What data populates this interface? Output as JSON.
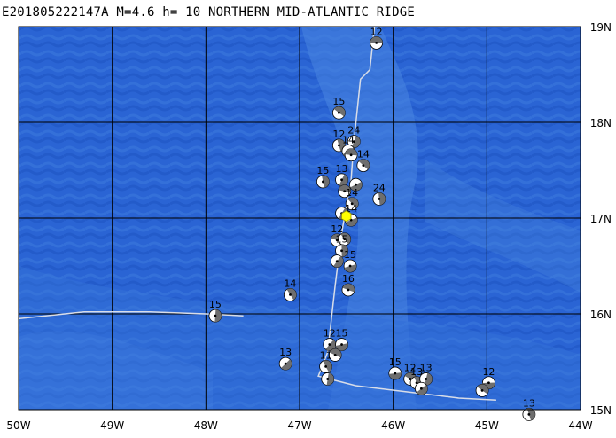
{
  "header": {
    "title": "E201805222147A  M=4.6  h=  10  NORTHERN MID-ATLANTIC RIDGE"
  },
  "colors": {
    "ocean_deep": "#1f56c8",
    "ocean_mid": "#2f6bd8",
    "ocean_light": "#4a86e0",
    "grid": "#000000",
    "plate_boundary": "#d8dde8",
    "event_marker": "#ffff00",
    "beachball_fill": "#6e6e6e"
  },
  "map": {
    "lon_range": [
      -50,
      -44
    ],
    "lat_range": [
      15,
      19
    ],
    "lon_labels": [
      "50W",
      "49W",
      "48W",
      "47W",
      "46W",
      "45W",
      "44W"
    ],
    "lat_labels": [
      "19N",
      "18N",
      "17N",
      "16N",
      "15N"
    ],
    "plate_boundaries": [
      [
        [
          -46.2,
          19.0
        ],
        [
          -46.25,
          18.55
        ],
        [
          -46.35,
          18.45
        ],
        [
          -46.42,
          17.8
        ],
        [
          -46.45,
          17.4
        ],
        [
          -46.55,
          16.85
        ],
        [
          -46.62,
          16.3
        ],
        [
          -46.7,
          15.6
        ],
        [
          -46.8,
          15.35
        ],
        [
          -46.4,
          15.25
        ],
        [
          -45.8,
          15.18
        ],
        [
          -45.3,
          15.12
        ],
        [
          -44.9,
          15.1
        ]
      ],
      [
        [
          -50.0,
          15.95
        ],
        [
          -49.3,
          16.02
        ],
        [
          -48.6,
          16.02
        ],
        [
          -48.0,
          16.0
        ],
        [
          -47.6,
          15.98
        ]
      ]
    ],
    "main_event": {
      "lon": -46.5,
      "lat": 17.02
    },
    "events": [
      {
        "lon": -46.18,
        "lat": 18.83,
        "label": "12"
      },
      {
        "lon": -46.58,
        "lat": 18.1,
        "label": "15"
      },
      {
        "lon": -46.58,
        "lat": 17.76,
        "label": "12"
      },
      {
        "lon": -46.42,
        "lat": 17.8,
        "label": "24"
      },
      {
        "lon": -46.48,
        "lat": 17.7,
        "label": "14"
      },
      {
        "lon": -46.45,
        "lat": 17.66,
        "label": ""
      },
      {
        "lon": -46.32,
        "lat": 17.55,
        "label": "14"
      },
      {
        "lon": -46.75,
        "lat": 17.38,
        "label": "15"
      },
      {
        "lon": -46.55,
        "lat": 17.4,
        "label": "13"
      },
      {
        "lon": -46.4,
        "lat": 17.35,
        "label": ""
      },
      {
        "lon": -46.52,
        "lat": 17.28,
        "label": ""
      },
      {
        "lon": -46.44,
        "lat": 17.15,
        "label": "14"
      },
      {
        "lon": -46.15,
        "lat": 17.2,
        "label": "24"
      },
      {
        "lon": -46.55,
        "lat": 17.05,
        "label": ""
      },
      {
        "lon": -46.45,
        "lat": 16.98,
        "label": "14"
      },
      {
        "lon": -46.6,
        "lat": 16.77,
        "label": "12"
      },
      {
        "lon": -46.52,
        "lat": 16.78,
        "label": ""
      },
      {
        "lon": -46.55,
        "lat": 16.66,
        "label": "15"
      },
      {
        "lon": -46.6,
        "lat": 16.55,
        "label": ""
      },
      {
        "lon": -46.46,
        "lat": 16.5,
        "label": "15"
      },
      {
        "lon": -46.48,
        "lat": 16.25,
        "label": "16"
      },
      {
        "lon": -47.1,
        "lat": 16.2,
        "label": "14"
      },
      {
        "lon": -47.9,
        "lat": 15.98,
        "label": "15"
      },
      {
        "lon": -46.68,
        "lat": 15.68,
        "label": "12"
      },
      {
        "lon": -46.55,
        "lat": 15.68,
        "label": "15"
      },
      {
        "lon": -46.62,
        "lat": 15.57,
        "label": ""
      },
      {
        "lon": -46.72,
        "lat": 15.45,
        "label": "11"
      },
      {
        "lon": -46.7,
        "lat": 15.32,
        "label": ""
      },
      {
        "lon": -47.15,
        "lat": 15.48,
        "label": "13"
      },
      {
        "lon": -45.98,
        "lat": 15.38,
        "label": "15"
      },
      {
        "lon": -45.82,
        "lat": 15.32,
        "label": "12"
      },
      {
        "lon": -45.75,
        "lat": 15.28,
        "label": "13"
      },
      {
        "lon": -45.65,
        "lat": 15.32,
        "label": "13"
      },
      {
        "lon": -45.7,
        "lat": 15.22,
        "label": ""
      },
      {
        "lon": -44.98,
        "lat": 15.28,
        "label": "12"
      },
      {
        "lon": -45.05,
        "lat": 15.2,
        "label": ""
      },
      {
        "lon": -44.55,
        "lat": 14.95,
        "label": "13"
      }
    ]
  }
}
